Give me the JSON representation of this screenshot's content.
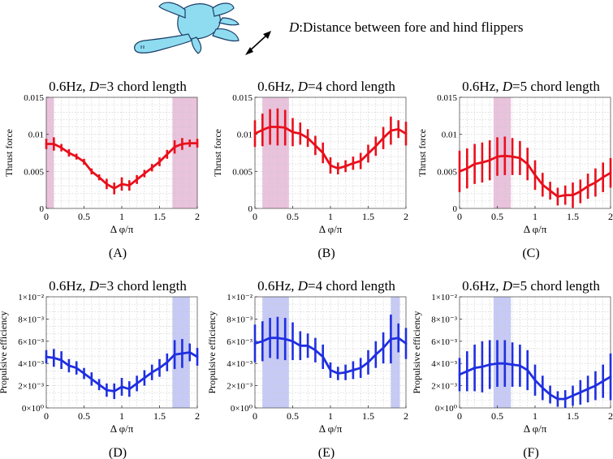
{
  "header": {
    "caption_symbol": "D",
    "caption_text": ":Distance between fore and hind flippers"
  },
  "colors": {
    "thrust": "#e8101c",
    "efficiency": "#1f2fe0",
    "thrust_band": "#e9c2dc",
    "efficiency_band": "#c6caf5"
  },
  "chart_data": [
    {
      "type": "line",
      "panel": "(A)",
      "title": "0.6Hz, D=3 chord length",
      "xlabel": "Δ φ/π",
      "ylabel": "Thrust force",
      "xlim": [
        0,
        2
      ],
      "ylim": [
        0,
        0.015
      ],
      "xticks": [
        0,
        0.5,
        1,
        1.5,
        2
      ],
      "xtick_labels": [
        "0",
        "0.5",
        "1",
        "1.5",
        "2"
      ],
      "yticks": [
        0,
        0.005,
        0.01,
        0.015
      ],
      "ytick_labels": [
        "0",
        "0.005",
        "0.01",
        "0.015"
      ],
      "grid": true,
      "color": "thrust",
      "band_color": "thrust_band",
      "highlight": [
        [
          0,
          0.1
        ],
        [
          1.67,
          2.0
        ]
      ],
      "x": [
        0,
        0.1,
        0.2,
        0.3,
        0.4,
        0.5,
        0.6,
        0.7,
        0.8,
        0.9,
        1.0,
        1.1,
        1.2,
        1.3,
        1.4,
        1.5,
        1.6,
        1.7,
        1.8,
        1.9,
        2.0
      ],
      "y": [
        0.0087,
        0.0087,
        0.0082,
        0.0075,
        0.007,
        0.0063,
        0.005,
        0.0042,
        0.0033,
        0.0027,
        0.0033,
        0.0031,
        0.0039,
        0.0047,
        0.0055,
        0.0063,
        0.0073,
        0.0083,
        0.0087,
        0.0088,
        0.0088
      ],
      "err": [
        0.0007,
        0.0009,
        0.0005,
        0.0005,
        0.0004,
        0.0004,
        0.0004,
        0.0004,
        0.0007,
        0.0008,
        0.0009,
        0.0007,
        0.0006,
        0.0005,
        0.0005,
        0.0006,
        0.0006,
        0.0009,
        0.0008,
        0.0005,
        0.0006
      ]
    },
    {
      "type": "line",
      "panel": "(B)",
      "title": "0.6Hz, D=4 chord length",
      "xlabel": "Δ φ/π",
      "ylabel": "Thrust force",
      "xlim": [
        0,
        2
      ],
      "ylim": [
        0,
        0.015
      ],
      "xticks": [
        0,
        0.5,
        1,
        1.5,
        2
      ],
      "xtick_labels": [
        "0",
        "0.5",
        "1",
        "1.5",
        "2"
      ],
      "yticks": [
        0,
        0.005,
        0.01,
        0.015
      ],
      "ytick_labels": [
        "0",
        "0.005",
        "0.01",
        "0.015"
      ],
      "grid": true,
      "color": "thrust",
      "band_color": "thrust_band",
      "highlight": [
        [
          0.1,
          0.45
        ]
      ],
      "x": [
        0,
        0.1,
        0.2,
        0.3,
        0.4,
        0.5,
        0.6,
        0.7,
        0.8,
        0.9,
        1.0,
        1.1,
        1.2,
        1.3,
        1.4,
        1.5,
        1.6,
        1.7,
        1.8,
        1.9,
        2.0
      ],
      "y": [
        0.0101,
        0.0106,
        0.011,
        0.011,
        0.0109,
        0.0103,
        0.0101,
        0.0095,
        0.0085,
        0.0075,
        0.0058,
        0.0054,
        0.0057,
        0.0061,
        0.0064,
        0.0074,
        0.0084,
        0.0095,
        0.0105,
        0.0107,
        0.0101
      ],
      "err": [
        0.0018,
        0.0022,
        0.0024,
        0.0025,
        0.0024,
        0.0019,
        0.0015,
        0.0012,
        0.0013,
        0.0014,
        0.0011,
        0.0008,
        0.0008,
        0.0009,
        0.0011,
        0.0012,
        0.0013,
        0.0015,
        0.0019,
        0.0012,
        0.0016
      ]
    },
    {
      "type": "line",
      "panel": "(C)",
      "title": "0.6Hz, D=5 chord length",
      "xlabel": "Δ φ/π",
      "ylabel": "Thrust force",
      "xlim": [
        0,
        2
      ],
      "ylim": [
        0,
        0.015
      ],
      "xticks": [
        0,
        0.5,
        1,
        1.5,
        2
      ],
      "xtick_labels": [
        "0",
        "0.5",
        "1",
        "1.5",
        "2"
      ],
      "yticks": [
        0,
        0.005,
        0.01,
        0.015
      ],
      "ytick_labels": [
        "0",
        "0.005",
        "0.01",
        "0.015"
      ],
      "grid": true,
      "color": "thrust",
      "band_color": "thrust_band",
      "highlight": [
        [
          0.45,
          0.68
        ]
      ],
      "x": [
        0,
        0.1,
        0.2,
        0.3,
        0.4,
        0.5,
        0.6,
        0.7,
        0.8,
        0.9,
        1.0,
        1.1,
        1.2,
        1.3,
        1.4,
        1.5,
        1.6,
        1.7,
        1.8,
        1.9,
        2.0
      ],
      "y": [
        0.005,
        0.0054,
        0.006,
        0.0062,
        0.0065,
        0.007,
        0.0071,
        0.007,
        0.0068,
        0.006,
        0.0045,
        0.0032,
        0.0024,
        0.0016,
        0.0018,
        0.0018,
        0.0023,
        0.003,
        0.0035,
        0.0042,
        0.0048
      ],
      "err": [
        0.0028,
        0.0027,
        0.0027,
        0.0027,
        0.0027,
        0.0026,
        0.0026,
        0.0025,
        0.0023,
        0.0022,
        0.002,
        0.0016,
        0.0012,
        0.0012,
        0.0013,
        0.0017,
        0.0016,
        0.0017,
        0.0019,
        0.002,
        0.002
      ]
    },
    {
      "type": "line",
      "panel": "(D)",
      "title": "0.6Hz, D=3 chord length",
      "xlabel": "Δ φ/π",
      "ylabel": "Propulsive efficiency",
      "xlim": [
        0,
        2
      ],
      "ylim": [
        0,
        0.01
      ],
      "xticks": [
        0,
        0.5,
        1,
        1.5,
        2
      ],
      "xtick_labels": [
        "0",
        "0.5",
        "1",
        "1.5",
        "2"
      ],
      "yticks": [
        0,
        0.002,
        0.004,
        0.006,
        0.008,
        0.01
      ],
      "ytick_labels": [
        "0×10⁰",
        "2×10⁻³",
        "4×10⁻³",
        "6×10⁻³",
        "8×10⁻³",
        "1×10⁻²"
      ],
      "grid": true,
      "color": "efficiency",
      "band_color": "efficiency_band",
      "highlight": [
        [
          1.67,
          1.9
        ]
      ],
      "x": [
        0,
        0.1,
        0.2,
        0.3,
        0.4,
        0.5,
        0.6,
        0.7,
        0.8,
        0.9,
        1.0,
        1.1,
        1.2,
        1.3,
        1.4,
        1.5,
        1.6,
        1.7,
        1.8,
        1.9,
        2.0
      ],
      "y": [
        0.0046,
        0.0045,
        0.0043,
        0.0038,
        0.0036,
        0.0031,
        0.0026,
        0.0021,
        0.0016,
        0.0015,
        0.0019,
        0.0017,
        0.0022,
        0.0027,
        0.0032,
        0.0036,
        0.0041,
        0.0048,
        0.0049,
        0.005,
        0.0046
      ],
      "err": [
        0.0006,
        0.0008,
        0.0008,
        0.0006,
        0.0006,
        0.0005,
        0.0006,
        0.0005,
        0.0006,
        0.0007,
        0.0008,
        0.0007,
        0.0007,
        0.0007,
        0.0007,
        0.0008,
        0.0008,
        0.0013,
        0.0013,
        0.0008,
        0.0008
      ]
    },
    {
      "type": "line",
      "panel": "(E)",
      "title": "0.6Hz, D=4 chord length",
      "xlabel": "Δ φ/π",
      "ylabel": "Propulsive efficiency",
      "xlim": [
        0,
        2
      ],
      "ylim": [
        0,
        0.01
      ],
      "xticks": [
        0,
        0.5,
        1,
        1.5,
        2
      ],
      "xtick_labels": [
        "0",
        "0.5",
        "1",
        "1.5",
        "2"
      ],
      "yticks": [
        0,
        0.002,
        0.004,
        0.006,
        0.008,
        0.01
      ],
      "ytick_labels": [
        "0×10⁰",
        "2×10⁻³",
        "4×10⁻³",
        "6×10⁻³",
        "8×10⁻³",
        "1×10⁻²"
      ],
      "grid": true,
      "color": "efficiency",
      "band_color": "efficiency_band",
      "highlight": [
        [
          0.1,
          0.45
        ],
        [
          1.8,
          1.92
        ]
      ],
      "x": [
        0,
        0.1,
        0.2,
        0.3,
        0.4,
        0.5,
        0.6,
        0.7,
        0.8,
        0.9,
        1.0,
        1.1,
        1.2,
        1.3,
        1.4,
        1.5,
        1.6,
        1.7,
        1.8,
        1.9,
        2.0
      ],
      "y": [
        0.0058,
        0.006,
        0.0063,
        0.0063,
        0.0062,
        0.006,
        0.0056,
        0.0056,
        0.0052,
        0.0046,
        0.0034,
        0.0031,
        0.0032,
        0.0034,
        0.0036,
        0.0041,
        0.0048,
        0.0054,
        0.0062,
        0.0063,
        0.0058
      ],
      "err": [
        0.0017,
        0.0018,
        0.0018,
        0.0019,
        0.0019,
        0.0017,
        0.0013,
        0.0011,
        0.0011,
        0.0011,
        0.0007,
        0.0006,
        0.0007,
        0.0008,
        0.0009,
        0.0011,
        0.0012,
        0.0014,
        0.0022,
        0.0013,
        0.0014
      ]
    },
    {
      "type": "line",
      "panel": "(F)",
      "title": "0.6Hz, D=5 chord length",
      "xlabel": "Δ φ/π",
      "ylabel": "Propulsive efficiency",
      "xlim": [
        0,
        2
      ],
      "ylim": [
        0,
        0.01
      ],
      "xticks": [
        0,
        0.5,
        1,
        1.5,
        2
      ],
      "xtick_labels": [
        "0",
        "0.5",
        "1",
        "1.5",
        "2"
      ],
      "yticks": [
        0,
        0.002,
        0.004,
        0.006,
        0.008,
        0.01
      ],
      "ytick_labels": [
        "0×10⁰",
        "2×10⁻³",
        "4×10⁻³",
        "6×10⁻³",
        "8×10⁻³",
        "1×10⁻²"
      ],
      "grid": true,
      "color": "efficiency",
      "band_color": "efficiency_band",
      "highlight": [
        [
          0.45,
          0.68
        ]
      ],
      "x": [
        0,
        0.1,
        0.2,
        0.3,
        0.4,
        0.5,
        0.6,
        0.7,
        0.8,
        0.9,
        1.0,
        1.1,
        1.2,
        1.3,
        1.4,
        1.5,
        1.6,
        1.7,
        1.8,
        1.9,
        2.0
      ],
      "y": [
        0.003,
        0.0033,
        0.0036,
        0.0037,
        0.0039,
        0.004,
        0.004,
        0.0039,
        0.0038,
        0.0034,
        0.0025,
        0.0018,
        0.0012,
        0.0008,
        0.0008,
        0.0011,
        0.0014,
        0.0017,
        0.002,
        0.0024,
        0.0028
      ],
      "err": [
        0.0015,
        0.0018,
        0.0021,
        0.0023,
        0.0022,
        0.0021,
        0.0021,
        0.002,
        0.0019,
        0.0018,
        0.0014,
        0.0011,
        0.0008,
        0.0007,
        0.0008,
        0.0009,
        0.0011,
        0.0012,
        0.0013,
        0.0015,
        0.0021
      ]
    }
  ]
}
